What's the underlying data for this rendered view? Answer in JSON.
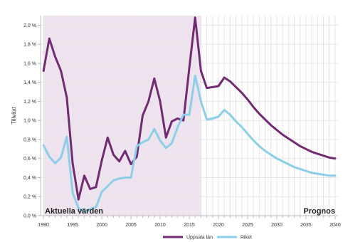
{
  "chart_data": {
    "type": "line",
    "xlabel": "",
    "ylabel": "Tillväxt",
    "xlim": [
      1989.5,
      2040.5
    ],
    "ylim": [
      0,
      2.1
    ],
    "x_ticks": [
      1990,
      1995,
      2000,
      2005,
      2010,
      2015,
      2020,
      2025,
      2030,
      2035,
      2040
    ],
    "x_tick_labels": [
      "1990",
      "1995",
      "2000",
      "2005",
      "2010",
      "2015",
      "2020",
      "2025",
      "2030",
      "2035",
      "2040"
    ],
    "y_ticks": [
      0,
      0.2,
      0.4,
      0.6,
      0.8,
      1.0,
      1.2,
      1.4,
      1.6,
      1.8,
      2.0
    ],
    "y_tick_labels": [
      "0,0 %",
      "0,2 %",
      "0,4 %",
      "0,6 %",
      "0,8 %",
      "1,0 %",
      "1,2 %",
      "1,4 %",
      "1,6 %",
      "1,8 %",
      "2,0 %"
    ],
    "grid": true,
    "legend_position": "bottom",
    "regions": [
      {
        "label": "Aktuella värden",
        "x_start": 1990,
        "x_end": 2017,
        "color": "#efe3ef"
      },
      {
        "label": "Prognos",
        "x_start": 2017,
        "x_end": 2040,
        "color": "#ffffff"
      }
    ],
    "series": [
      {
        "name": "Uppsala län",
        "color": "#722a73",
        "x": [
          1990,
          1991,
          1992,
          1993,
          1994,
          1995,
          1996,
          1997,
          1998,
          1999,
          2000,
          2001,
          2002,
          2003,
          2004,
          2005,
          2006,
          2007,
          2008,
          2009,
          2010,
          2011,
          2012,
          2013,
          2014,
          2015,
          2016,
          2017,
          2018,
          2019,
          2020,
          2021,
          2022,
          2023,
          2024,
          2025,
          2026,
          2027,
          2028,
          2029,
          2030,
          2031,
          2032,
          2033,
          2034,
          2035,
          2036,
          2037,
          2038,
          2039,
          2040
        ],
        "values": [
          1.52,
          1.86,
          1.67,
          1.52,
          1.24,
          0.55,
          0.17,
          0.42,
          0.28,
          0.3,
          0.58,
          0.82,
          0.64,
          0.57,
          0.68,
          0.54,
          0.62,
          1.05,
          1.2,
          1.44,
          1.2,
          0.82,
          0.99,
          1.02,
          1.0,
          1.55,
          2.08,
          1.52,
          1.34,
          1.35,
          1.36,
          1.45,
          1.41,
          1.35,
          1.29,
          1.22,
          1.14,
          1.07,
          1.01,
          0.95,
          0.9,
          0.85,
          0.81,
          0.77,
          0.73,
          0.7,
          0.67,
          0.65,
          0.63,
          0.61,
          0.6
        ]
      },
      {
        "name": "Riket",
        "color": "#8ccfe9",
        "x": [
          1990,
          1991,
          1992,
          1993,
          1994,
          1995,
          1996,
          1997,
          1998,
          1999,
          2000,
          2001,
          2002,
          2003,
          2004,
          2005,
          2006,
          2007,
          2008,
          2009,
          2010,
          2011,
          2012,
          2013,
          2014,
          2015,
          2016,
          2017,
          2018,
          2019,
          2020,
          2021,
          2022,
          2023,
          2024,
          2025,
          2026,
          2027,
          2028,
          2029,
          2030,
          2031,
          2032,
          2033,
          2034,
          2035,
          2036,
          2037,
          2038,
          2039,
          2040
        ],
        "values": [
          0.74,
          0.62,
          0.55,
          0.61,
          0.83,
          0.24,
          0.08,
          0.04,
          0.07,
          0.09,
          0.25,
          0.31,
          0.37,
          0.39,
          0.4,
          0.4,
          0.73,
          0.77,
          0.8,
          0.91,
          0.79,
          0.71,
          0.76,
          0.93,
          1.06,
          1.06,
          1.47,
          1.2,
          1.01,
          1.02,
          1.04,
          1.11,
          1.06,
          0.99,
          0.93,
          0.86,
          0.79,
          0.73,
          0.68,
          0.64,
          0.6,
          0.57,
          0.54,
          0.51,
          0.49,
          0.47,
          0.45,
          0.44,
          0.43,
          0.42,
          0.42
        ]
      }
    ]
  }
}
